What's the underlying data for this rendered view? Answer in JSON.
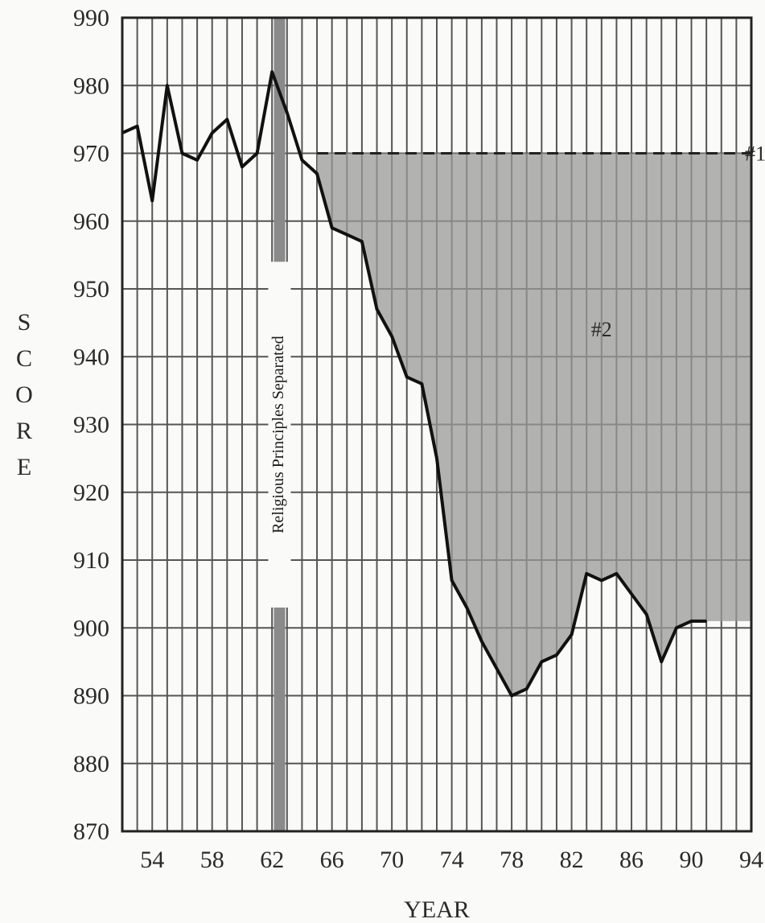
{
  "chart_data": {
    "type": "line",
    "title": "",
    "xlabel": "YEAR",
    "ylabel": "SCORE",
    "xlim": [
      52,
      94
    ],
    "ylim": [
      870,
      990
    ],
    "x_ticks": [
      54,
      58,
      62,
      66,
      70,
      74,
      78,
      82,
      86,
      90,
      94
    ],
    "x_minor_step": 1,
    "y_ticks": [
      870,
      880,
      890,
      900,
      910,
      920,
      930,
      940,
      950,
      960,
      970,
      980,
      990
    ],
    "grid": true,
    "series": [
      {
        "values": [
          {
            "x": 52,
            "y": 973
          },
          {
            "x": 53,
            "y": 974
          },
          {
            "x": 54,
            "y": 963
          },
          {
            "x": 55,
            "y": 980
          },
          {
            "x": 56,
            "y": 970
          },
          {
            "x": 57,
            "y": 969
          },
          {
            "x": 58,
            "y": 973
          },
          {
            "x": 59,
            "y": 975
          },
          {
            "x": 60,
            "y": 968
          },
          {
            "x": 61,
            "y": 970
          },
          {
            "x": 62,
            "y": 982
          },
          {
            "x": 63,
            "y": 976
          },
          {
            "x": 64,
            "y": 969
          },
          {
            "x": 65,
            "y": 967
          },
          {
            "x": 66,
            "y": 959
          },
          {
            "x": 67,
            "y": 958
          },
          {
            "x": 68,
            "y": 957
          },
          {
            "x": 69,
            "y": 947
          },
          {
            "x": 70,
            "y": 943
          },
          {
            "x": 71,
            "y": 937
          },
          {
            "x": 72,
            "y": 936
          },
          {
            "x": 73,
            "y": 925
          },
          {
            "x": 74,
            "y": 907
          },
          {
            "x": 75,
            "y": 903
          },
          {
            "x": 76,
            "y": 898
          },
          {
            "x": 77,
            "y": 894
          },
          {
            "x": 78,
            "y": 890
          },
          {
            "x": 79,
            "y": 891
          },
          {
            "x": 80,
            "y": 895
          },
          {
            "x": 81,
            "y": 896
          },
          {
            "x": 82,
            "y": 899
          },
          {
            "x": 83,
            "y": 908
          },
          {
            "x": 84,
            "y": 907
          },
          {
            "x": 85,
            "y": 908
          },
          {
            "x": 86,
            "y": 905
          },
          {
            "x": 87,
            "y": 902
          },
          {
            "x": 88,
            "y": 895
          },
          {
            "x": 89,
            "y": 900
          },
          {
            "x": 90,
            "y": 901
          },
          {
            "x": 91,
            "y": 901
          }
        ],
        "color": "#111111"
      }
    ],
    "reference_line": {
      "y": 970,
      "from_x": 65,
      "to_x": 94,
      "style": "dashed",
      "label": "#1"
    },
    "shaded_region": {
      "between": "reference_line and series",
      "from_x": 65,
      "color": "#9a9a9a",
      "label": "#2",
      "label_position": {
        "x": 84,
        "y": 943
      }
    },
    "event_marker": {
      "x": 62,
      "label": "Religious Principles Separated",
      "color": "#8a8a8a"
    }
  }
}
